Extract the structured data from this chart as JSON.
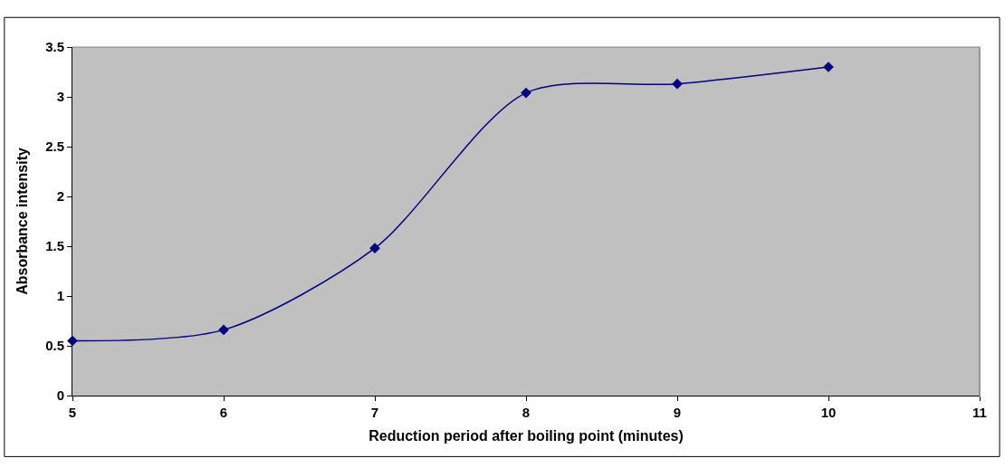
{
  "chart_data": {
    "type": "line",
    "xlabel": "Reduction period after boiling point (minutes)",
    "ylabel": "Absorbance intensity",
    "x": [
      5,
      6,
      7,
      8,
      9,
      10
    ],
    "series": [
      {
        "color": "#000080",
        "values": [
          0.55,
          0.66,
          1.48,
          3.04,
          3.13,
          3.3
        ]
      }
    ],
    "xlim": [
      5,
      11
    ],
    "xticks": [
      5,
      6,
      7,
      8,
      9,
      10,
      11
    ],
    "ylim": [
      0,
      3.5
    ],
    "yticks": [
      0,
      0.5,
      1,
      1.5,
      2,
      2.5,
      3,
      3.5
    ],
    "grid": false,
    "marker": "diamond",
    "line_style": "solid"
  }
}
